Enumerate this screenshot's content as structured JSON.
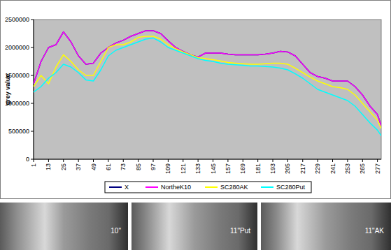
{
  "chart_data": {
    "type": "line",
    "y_label": "grey value",
    "x": [
      1,
      7,
      13,
      19,
      25,
      31,
      37,
      43,
      49,
      55,
      61,
      67,
      73,
      79,
      85,
      91,
      97,
      103,
      109,
      115,
      121,
      127,
      133,
      139,
      145,
      151,
      157,
      163,
      169,
      175,
      181,
      187,
      193,
      199,
      205,
      211,
      217,
      223,
      229,
      235,
      241,
      247,
      253,
      259,
      265,
      271,
      277,
      280
    ],
    "xlim": [
      1,
      280
    ],
    "xticks": [
      1,
      13,
      25,
      37,
      49,
      61,
      73,
      85,
      97,
      109,
      121,
      133,
      145,
      157,
      169,
      181,
      193,
      205,
      217,
      229,
      241,
      253,
      265,
      277
    ],
    "ylim": [
      0,
      2500000
    ],
    "yticks": [
      0,
      500000,
      1000000,
      1500000,
      2000000,
      2500000
    ],
    "grid": false,
    "legend": "bottom",
    "series": [
      {
        "name": "X",
        "color": "#000080",
        "values": [
          1350000,
          1750000,
          2000000,
          2050000,
          2280000,
          2100000,
          1850000,
          1700000,
          1720000,
          1900000,
          2000000,
          2080000,
          2130000,
          2200000,
          2250000,
          2300000,
          2300000,
          2250000,
          2120000,
          2000000,
          1930000,
          1870000,
          1830000,
          1900000,
          1900000,
          1900000,
          1880000,
          1870000,
          1870000,
          1870000,
          1870000,
          1880000,
          1900000,
          1930000,
          1920000,
          1850000,
          1700000,
          1550000,
          1480000,
          1450000,
          1400000,
          1400000,
          1400000,
          1300000,
          1150000,
          950000,
          800000,
          600000
        ]
      },
      {
        "name": "NortheK10",
        "color": "#ff00ff",
        "values": [
          1350000,
          1750000,
          2000000,
          2050000,
          2280000,
          2100000,
          1850000,
          1700000,
          1720000,
          1900000,
          2000000,
          2080000,
          2130000,
          2200000,
          2250000,
          2300000,
          2300000,
          2250000,
          2120000,
          2000000,
          1930000,
          1870000,
          1830000,
          1900000,
          1900000,
          1900000,
          1880000,
          1870000,
          1870000,
          1870000,
          1870000,
          1880000,
          1900000,
          1930000,
          1920000,
          1850000,
          1700000,
          1550000,
          1480000,
          1450000,
          1400000,
          1400000,
          1400000,
          1300000,
          1150000,
          950000,
          800000,
          600000
        ]
      },
      {
        "name": "SC280AK",
        "color": "#ffff00",
        "values": [
          1300000,
          1500000,
          1350000,
          1650000,
          1870000,
          1750000,
          1600000,
          1500000,
          1500000,
          1750000,
          2000000,
          2050000,
          2050000,
          2100000,
          2180000,
          2200000,
          2200000,
          2150000,
          2050000,
          1980000,
          1920000,
          1870000,
          1820000,
          1800000,
          1780000,
          1760000,
          1730000,
          1720000,
          1710000,
          1700000,
          1700000,
          1710000,
          1720000,
          1720000,
          1700000,
          1630000,
          1550000,
          1470000,
          1400000,
          1350000,
          1300000,
          1280000,
          1250000,
          1150000,
          1000000,
          850000,
          700000,
          550000
        ]
      },
      {
        "name": "SC280Put",
        "color": "#00ffff",
        "values": [
          1200000,
          1300000,
          1450000,
          1550000,
          1700000,
          1650000,
          1550000,
          1420000,
          1400000,
          1600000,
          1850000,
          1950000,
          2000000,
          2050000,
          2100000,
          2150000,
          2170000,
          2100000,
          2000000,
          1950000,
          1900000,
          1850000,
          1800000,
          1770000,
          1750000,
          1720000,
          1700000,
          1690000,
          1680000,
          1670000,
          1670000,
          1660000,
          1650000,
          1630000,
          1600000,
          1530000,
          1450000,
          1350000,
          1250000,
          1200000,
          1150000,
          1100000,
          1050000,
          950000,
          800000,
          650000,
          520000,
          420000
        ]
      }
    ]
  },
  "images": {
    "labels": [
      "10\"",
      "11\"Put",
      "11\"AK"
    ]
  }
}
